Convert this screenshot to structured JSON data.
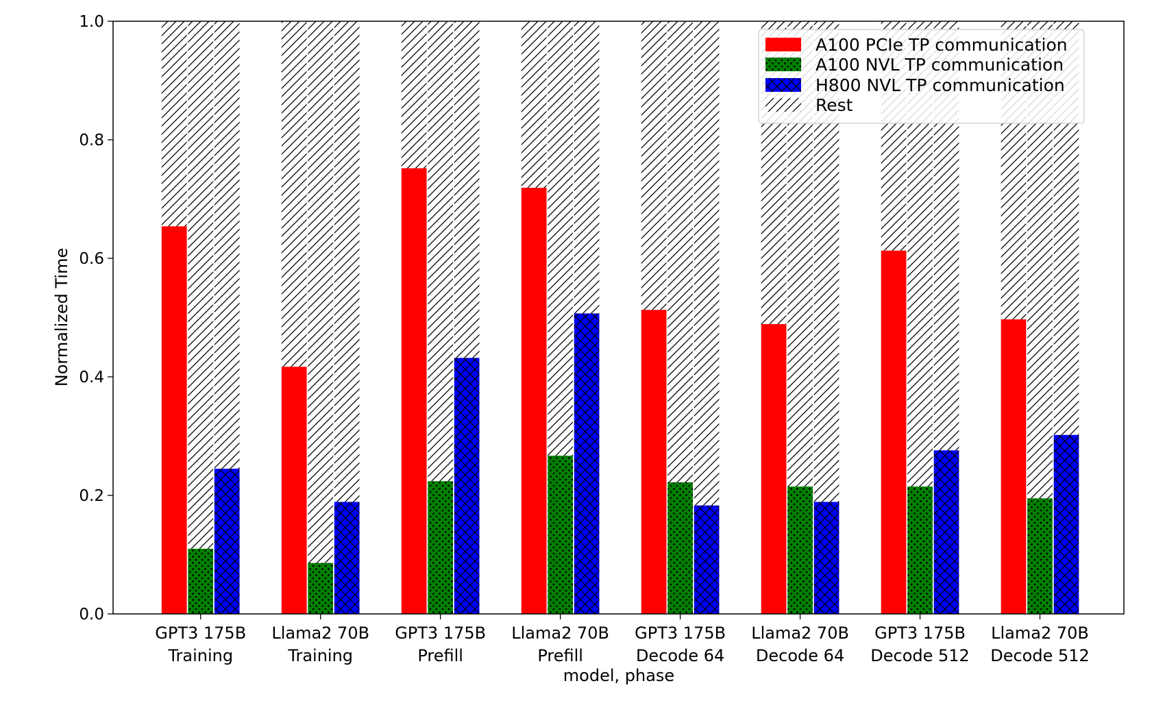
{
  "chart_data": {
    "type": "bar",
    "stacked_remainder": true,
    "title": "",
    "xlabel": "model, phase",
    "ylabel": "Normalized Time",
    "ylim": [
      0,
      1.0
    ],
    "yticks": [
      "0.0",
      "0.2",
      "0.4",
      "0.6",
      "0.8",
      "1.0"
    ],
    "categories": [
      [
        "GPT3 175B",
        "Training"
      ],
      [
        "Llama2 70B",
        "Training"
      ],
      [
        "GPT3 175B",
        "Prefill"
      ],
      [
        "Llama2 70B",
        "Prefill"
      ],
      [
        "GPT3 175B",
        "Decode 64"
      ],
      [
        "Llama2 70B",
        "Decode 64"
      ],
      [
        "GPT3 175B",
        "Decode 512"
      ],
      [
        "Llama2 70B",
        "Decode 512"
      ]
    ],
    "series": [
      {
        "name": "A100 PCIe TP communication",
        "color": "#ff0000",
        "pattern": "solid",
        "values": [
          0.654,
          0.417,
          0.752,
          0.719,
          0.513,
          0.489,
          0.613,
          0.497
        ]
      },
      {
        "name": "A100 NVL TP communication",
        "color": "#008000",
        "pattern": "dots",
        "values": [
          0.11,
          0.086,
          0.224,
          0.267,
          0.222,
          0.215,
          0.215,
          0.195
        ]
      },
      {
        "name": "H800 NVL TP communication",
        "color": "#0000ff",
        "pattern": "crosshatch",
        "values": [
          0.245,
          0.189,
          0.432,
          0.507,
          0.183,
          0.189,
          0.276,
          0.302
        ]
      }
    ],
    "rest": {
      "name": "Rest",
      "pattern": "diagonal-hatch",
      "total": 1.0
    },
    "legend": {
      "position": "top-right"
    },
    "grid": false
  }
}
